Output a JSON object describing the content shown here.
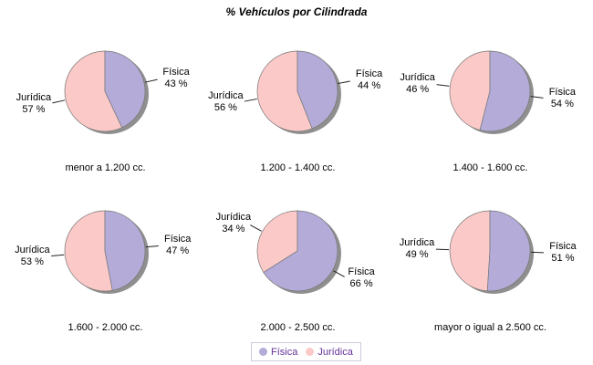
{
  "title": "% Vehículos por Cilindrada",
  "colors": {
    "fisica": "#b5abd8",
    "juridica": "#fbcac8",
    "pie_outline": "#757575",
    "shadow": "#8f8f8f",
    "callout_line": "#222222",
    "legend_text": "#663399",
    "legend_border": "#ccccdd",
    "background": "#ffffff"
  },
  "legend": {
    "position": "bottom-center",
    "items": [
      {
        "name": "Física",
        "color": "#b5abd8"
      },
      {
        "name": "Jurídica",
        "color": "#fbcac8"
      }
    ]
  },
  "chart_data": {
    "type": "pie",
    "title": "% Vehículos por Cilindrada",
    "series_names": [
      "Física",
      "Jurídica"
    ],
    "legend_position": "bottom",
    "layout": "2 rows x 3 columns of pies",
    "pies": [
      {
        "category": "menor a 1.200 cc.",
        "fisica_pct": 43,
        "juridica_pct": 57,
        "fisica_value_label": "43 %",
        "juridica_value_label": "57 %"
      },
      {
        "category": "1.200 - 1.400 cc.",
        "fisica_pct": 44,
        "juridica_pct": 56,
        "fisica_value_label": "44 %",
        "juridica_value_label": "56 %"
      },
      {
        "category": "1.400 - 1.600 cc.",
        "fisica_pct": 54,
        "juridica_pct": 46,
        "fisica_value_label": "54 %",
        "juridica_value_label": "46 %"
      },
      {
        "category": "1.600 - 2.000 cc.",
        "fisica_pct": 47,
        "juridica_pct": 53,
        "fisica_value_label": "47 %",
        "juridica_value_label": "53 %"
      },
      {
        "category": "2.000 - 2.500 cc.",
        "fisica_pct": 66,
        "juridica_pct": 34,
        "fisica_value_label": "66 %",
        "juridica_value_label": "34 %"
      },
      {
        "category": "mayor o igual a 2.500 cc.",
        "fisica_pct": 51,
        "juridica_pct": 49,
        "fisica_value_label": "51 %",
        "juridica_value_label": "49 %"
      }
    ]
  }
}
